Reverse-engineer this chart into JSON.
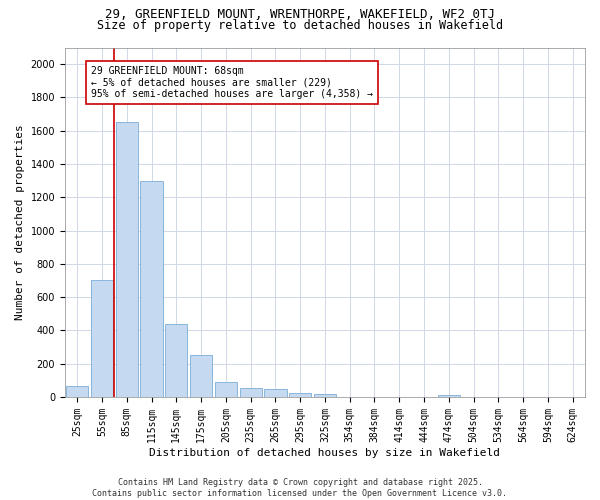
{
  "title_line1": "29, GREENFIELD MOUNT, WRENTHORPE, WAKEFIELD, WF2 0TJ",
  "title_line2": "Size of property relative to detached houses in Wakefield",
  "xlabel": "Distribution of detached houses by size in Wakefield",
  "ylabel": "Number of detached properties",
  "categories": [
    "25sqm",
    "55sqm",
    "85sqm",
    "115sqm",
    "145sqm",
    "175sqm",
    "205sqm",
    "235sqm",
    "265sqm",
    "295sqm",
    "325sqm",
    "354sqm",
    "384sqm",
    "414sqm",
    "444sqm",
    "474sqm",
    "504sqm",
    "534sqm",
    "564sqm",
    "594sqm",
    "624sqm"
  ],
  "values": [
    65,
    700,
    1650,
    1300,
    440,
    250,
    90,
    55,
    50,
    25,
    20,
    0,
    0,
    0,
    0,
    10,
    0,
    0,
    0,
    0,
    0
  ],
  "bar_color": "#c5d9f0",
  "bar_edge_color": "#7aaed6",
  "annotation_text": "29 GREENFIELD MOUNT: 68sqm\n← 5% of detached houses are smaller (229)\n95% of semi-detached houses are larger (4,358) →",
  "vline_color": "#cc0000",
  "box_color": "#cc0000",
  "ylim": [
    0,
    2100
  ],
  "yticks": [
    0,
    200,
    400,
    600,
    800,
    1000,
    1200,
    1400,
    1600,
    1800,
    2000
  ],
  "footnote": "Contains HM Land Registry data © Crown copyright and database right 2025.\nContains public sector information licensed under the Open Government Licence v3.0.",
  "bg_color": "#ffffff",
  "plot_bg_color": "#ffffff",
  "grid_color": "#d0d8e8",
  "title_fontsize": 9,
  "subtitle_fontsize": 8.5,
  "axis_label_fontsize": 8,
  "tick_fontsize": 7,
  "annotation_fontsize": 7,
  "footnote_fontsize": 6
}
